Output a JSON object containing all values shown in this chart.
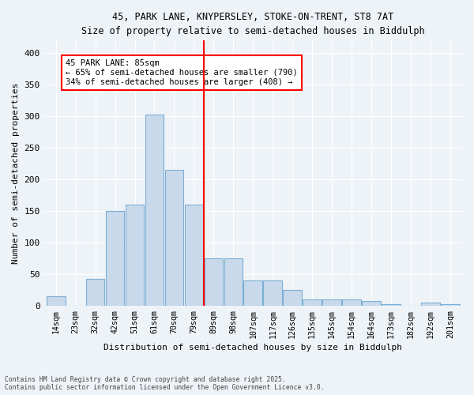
{
  "title1": "45, PARK LANE, KNYPERSLEY, STOKE-ON-TRENT, ST8 7AT",
  "title2": "Size of property relative to semi-detached houses in Biddulph",
  "xlabel": "Distribution of semi-detached houses by size in Biddulph",
  "ylabel": "Number of semi-detached properties",
  "categories": [
    "14sqm",
    "23sqm",
    "32sqm",
    "42sqm",
    "51sqm",
    "61sqm",
    "70sqm",
    "79sqm",
    "89sqm",
    "98sqm",
    "107sqm",
    "117sqm",
    "126sqm",
    "135sqm",
    "145sqm",
    "154sqm",
    "164sqm",
    "173sqm",
    "182sqm",
    "192sqm",
    "201sqm"
  ],
  "values": [
    15,
    0,
    43,
    150,
    160,
    303,
    215,
    160,
    75,
    75,
    40,
    40,
    25,
    10,
    10,
    10,
    8,
    3,
    0,
    5,
    3
  ],
  "bar_color": "#c9d9ec",
  "bar_edge_color": "#7bafd4",
  "redline_index": 7,
  "annotation_title": "45 PARK LANE: 85sqm",
  "annotation_line1": "← 65% of semi-detached houses are smaller (790)",
  "annotation_line2": "34% of semi-detached houses are larger (408) →",
  "ylim": [
    0,
    420
  ],
  "yticks": [
    0,
    50,
    100,
    150,
    200,
    250,
    300,
    350,
    400
  ],
  "footer1": "Contains HM Land Registry data © Crown copyright and database right 2025.",
  "footer2": "Contains public sector information licensed under the Open Government Licence v3.0.",
  "bg_color": "#eef3f8",
  "grid_color": "#ffffff"
}
